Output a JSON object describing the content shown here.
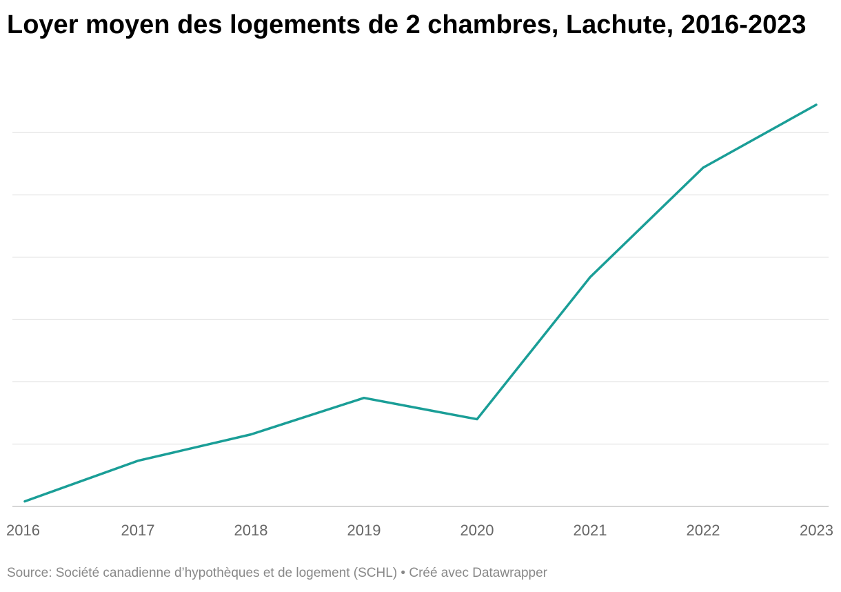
{
  "chart_data": {
    "type": "line",
    "title": "Loyer moyen des logements de 2 chambres, Lachute, 2016-2023",
    "x": [
      "2016",
      "2017",
      "2018",
      "2019",
      "2020",
      "2021",
      "2022",
      "2023"
    ],
    "series": [
      {
        "values": [
          605,
          645,
          671,
          707,
          686,
          826,
          934,
          996
        ],
        "color": "#1a9e97"
      }
    ],
    "ylim": [
      600,
      1000
    ],
    "grid": true,
    "xlabel": "",
    "ylabel": ""
  },
  "source": "Source: Société canadienne d’hypothèques et de logement (SCHL) • Créé avec Datawrapper"
}
